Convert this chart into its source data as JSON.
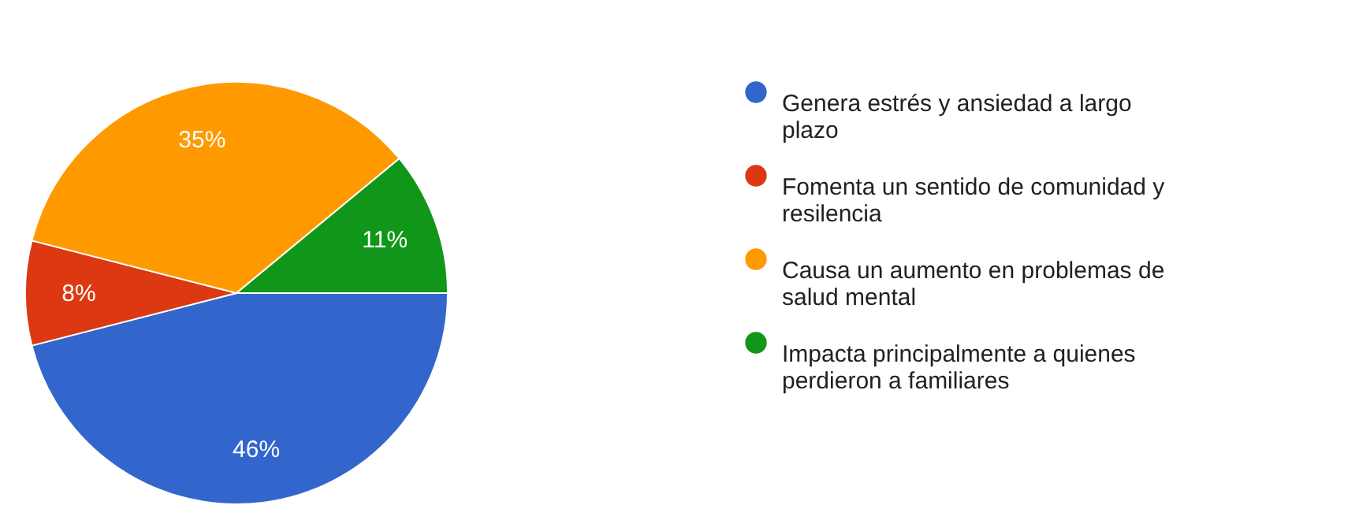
{
  "chart_data": {
    "type": "pie",
    "categories": [
      "Genera estrés y ansiedad a largo plazo",
      "Fomenta un sentido de comunidad y resilencia",
      "Causa un aumento en problemas de salud mental",
      "Impacta principalmente a quienes perdieron a familiares"
    ],
    "values": [
      46,
      8,
      35,
      11
    ],
    "colors": [
      "#3366cc",
      "#dc3912",
      "#ff9900",
      "#109618"
    ],
    "value_labels": [
      "46%",
      "8%",
      "35%",
      "11%"
    ],
    "legend": "right"
  }
}
